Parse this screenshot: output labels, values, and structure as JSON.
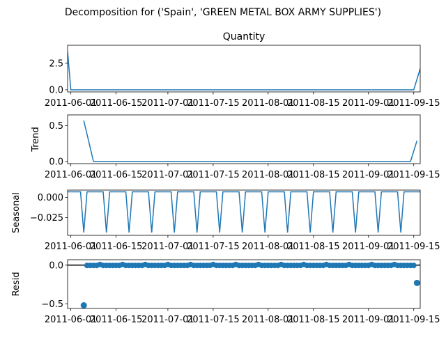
{
  "figure_title": "Decomposition for ('Spain', 'GREEN METAL BOX ARMY SUPPLIES')",
  "line_color": "#1f77b4",
  "chart_data": [
    {
      "type": "line",
      "title": "Quantity",
      "ylabel": "",
      "xlim": [
        "2011-05-31",
        "2011-09-17"
      ],
      "ylim": [
        -0.2,
        4.2
      ],
      "yticks": [
        0.0,
        2.5
      ],
      "ytick_labels": [
        "0.0",
        "2.5"
      ],
      "xticks": [
        "2011-06-01",
        "2011-06-15",
        "2011-07-01",
        "2011-07-15",
        "2011-08-01",
        "2011-08-15",
        "2011-09-01",
        "2011-09-15"
      ],
      "xtick_labels": [
        "2011-06-01",
        "2011-06-15",
        "2011-07-01",
        "2011-07-15",
        "2011-08-01",
        "2011-08-15",
        "2011-09-01",
        "2011-09-15"
      ],
      "x": [
        "2011-05-31",
        "2011-06-01",
        "2011-09-15",
        "2011-09-17"
      ],
      "y": [
        3.6,
        0.0,
        0.0,
        2.0
      ]
    },
    {
      "type": "line",
      "title": "",
      "ylabel": "Trend",
      "xlim": [
        "2011-05-31",
        "2011-09-17"
      ],
      "ylim": [
        -0.03,
        0.65
      ],
      "yticks": [
        0.0,
        0.5
      ],
      "ytick_labels": [
        "0.0",
        "0.5"
      ],
      "xticks": [
        "2011-06-01",
        "2011-06-15",
        "2011-07-01",
        "2011-07-15",
        "2011-08-01",
        "2011-08-15",
        "2011-09-01",
        "2011-09-15"
      ],
      "xtick_labels": [
        "2011-06-01",
        "2011-06-15",
        "2011-07-01",
        "2011-07-15",
        "2011-08-01",
        "2011-08-15",
        "2011-09-01",
        "2011-09-15"
      ],
      "x": [
        "2011-06-05",
        "2011-06-08",
        "2011-09-14",
        "2011-09-16"
      ],
      "y": [
        0.57,
        0.0,
        0.0,
        0.29
      ]
    },
    {
      "type": "line",
      "title": "",
      "ylabel": "Seasonal",
      "xlim": [
        "2011-05-31",
        "2011-09-17"
      ],
      "ylim": [
        -0.047,
        0.009
      ],
      "yticks": [
        0.0,
        -0.025
      ],
      "ytick_labels": [
        "0.000",
        "−0.025"
      ],
      "xticks": [
        "2011-06-01",
        "2011-06-15",
        "2011-07-01",
        "2011-07-15",
        "2011-08-01",
        "2011-08-15",
        "2011-09-01",
        "2011-09-15"
      ],
      "xtick_labels": [
        "2011-06-01",
        "2011-06-15",
        "2011-07-01",
        "2011-07-15",
        "2011-08-01",
        "2011-08-15",
        "2011-09-01",
        "2011-09-15"
      ],
      "period_days": 7,
      "dip_start": "2011-06-05",
      "baseline": 0.0068,
      "dip": -0.0435,
      "start": "2011-05-31",
      "end": "2011-09-17"
    },
    {
      "type": "scatter",
      "title": "",
      "ylabel": "Resid",
      "xlim": [
        "2011-05-31",
        "2011-09-17"
      ],
      "ylim": [
        -0.56,
        0.07
      ],
      "yticks": [
        0.0,
        -0.5
      ],
      "ytick_labels": [
        "0.0",
        "−0.5"
      ],
      "xticks": [
        "2011-06-01",
        "2011-06-15",
        "2011-07-01",
        "2011-07-15",
        "2011-08-01",
        "2011-08-15",
        "2011-09-01",
        "2011-09-15"
      ],
      "xtick_labels": [
        "2011-06-01",
        "2011-06-15",
        "2011-07-01",
        "2011-07-15",
        "2011-08-01",
        "2011-08-15",
        "2011-09-01",
        "2011-09-15"
      ],
      "zero_line": true,
      "start": "2011-06-05",
      "end": "2011-09-15",
      "regular_value": -0.0038,
      "weekly_value": 0.0079,
      "weekly_first": "2011-06-10",
      "period_days": 7,
      "outliers": [
        {
          "x": "2011-06-05",
          "y": -0.52
        },
        {
          "x": "2011-09-16",
          "y": -0.23
        }
      ]
    }
  ]
}
